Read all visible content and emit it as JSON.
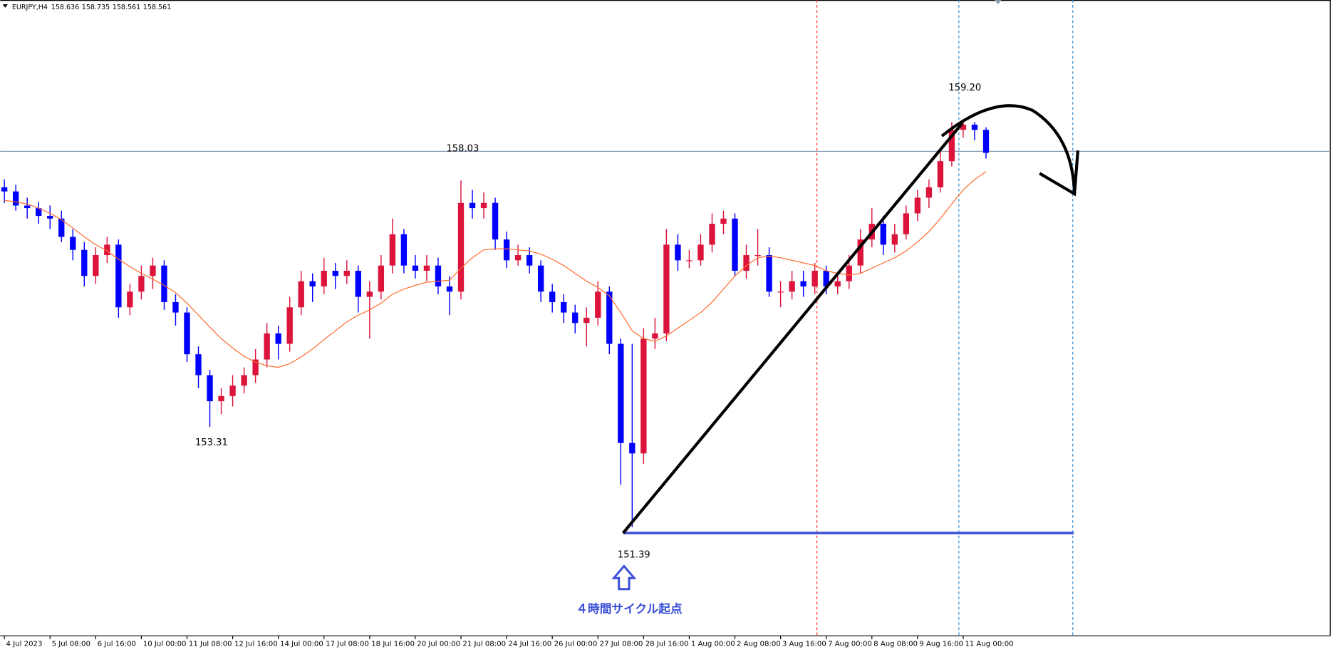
{
  "chart_data": {
    "type": "candlestick",
    "symbol": "EURJPY,H4",
    "info_values": [
      158.636,
      158.735,
      158.561,
      158.561
    ],
    "up_color": "#dc143c",
    "down_color": "#0000ff",
    "ma_color": "#ff6a2a",
    "ylim": [
      149.305,
      161.488
    ],
    "xlim": [
      -0.37,
      116.16
    ],
    "xticks": [
      {
        "value": 0,
        "label": "4 Jul 2023"
      },
      {
        "value": 4,
        "label": "5 Jul 08:00"
      },
      {
        "value": 8,
        "label": "6 Jul 16:00"
      },
      {
        "value": 12,
        "label": "10 Jul 00:00"
      },
      {
        "value": 16,
        "label": "11 Jul 08:00"
      },
      {
        "value": 20,
        "label": "12 Jul 16:00"
      },
      {
        "value": 24,
        "label": "14 Jul 00:00"
      },
      {
        "value": 28,
        "label": "17 Jul 08:00"
      },
      {
        "value": 32,
        "label": "18 Jul 16:00"
      },
      {
        "value": 36,
        "label": "20 Jul 00:00"
      },
      {
        "value": 40,
        "label": "21 Jul 08:00"
      },
      {
        "value": 44,
        "label": "24 Jul 16:00"
      },
      {
        "value": 48,
        "label": "26 Jul 00:00"
      },
      {
        "value": 52,
        "label": "27 Jul 08:00"
      },
      {
        "value": 56,
        "label": "28 Jul 16:00"
      },
      {
        "value": 60,
        "label": "1 Aug 00:00"
      },
      {
        "value": 64,
        "label": "2 Aug 08:00"
      },
      {
        "value": 68,
        "label": "3 Aug 16:00"
      },
      {
        "value": 72,
        "label": "7 Aug 00:00"
      },
      {
        "value": 76,
        "label": "8 Aug 08:00"
      },
      {
        "value": 80,
        "label": "9 Aug 16:00"
      },
      {
        "value": 84,
        "label": "11 Aug 00:00"
      }
    ],
    "candles": [
      [
        157.9,
        158.05,
        157.6,
        157.82
      ],
      [
        157.82,
        157.95,
        157.45,
        157.55
      ],
      [
        157.55,
        157.7,
        157.3,
        157.5
      ],
      [
        157.5,
        157.62,
        157.2,
        157.35
      ],
      [
        157.35,
        157.55,
        157.1,
        157.3
      ],
      [
        157.3,
        157.45,
        156.85,
        156.95
      ],
      [
        156.95,
        157.1,
        156.5,
        156.7
      ],
      [
        156.7,
        156.85,
        156.0,
        156.2
      ],
      [
        156.2,
        156.75,
        156.05,
        156.6
      ],
      [
        156.6,
        156.95,
        156.45,
        156.8
      ],
      [
        156.8,
        156.9,
        155.4,
        155.6
      ],
      [
        155.6,
        156.05,
        155.45,
        155.9
      ],
      [
        155.9,
        156.4,
        155.75,
        156.2
      ],
      [
        156.2,
        156.55,
        155.95,
        156.4
      ],
      [
        156.4,
        156.5,
        155.55,
        155.7
      ],
      [
        155.7,
        155.85,
        155.25,
        155.5
      ],
      [
        155.5,
        155.6,
        154.55,
        154.7
      ],
      [
        154.7,
        154.85,
        154.05,
        154.3
      ],
      [
        154.3,
        154.4,
        153.31,
        153.8
      ],
      [
        153.8,
        154.05,
        153.55,
        153.9
      ],
      [
        153.9,
        154.3,
        153.7,
        154.1
      ],
      [
        154.1,
        154.45,
        153.95,
        154.3
      ],
      [
        154.3,
        154.8,
        154.15,
        154.6
      ],
      [
        154.6,
        155.3,
        154.45,
        155.1
      ],
      [
        155.1,
        155.25,
        154.6,
        154.9
      ],
      [
        154.9,
        155.8,
        154.75,
        155.6
      ],
      [
        155.6,
        156.3,
        155.45,
        156.1
      ],
      [
        156.1,
        156.25,
        155.7,
        156.0
      ],
      [
        156.0,
        156.55,
        155.85,
        156.3
      ],
      [
        156.3,
        156.45,
        155.95,
        156.2
      ],
      [
        156.2,
        156.5,
        156.05,
        156.3
      ],
      [
        156.3,
        156.4,
        155.5,
        155.8
      ],
      [
        155.8,
        156.1,
        155.0,
        155.9
      ],
      [
        155.9,
        156.6,
        155.75,
        156.4
      ],
      [
        156.4,
        157.3,
        156.25,
        157.0
      ],
      [
        157.0,
        157.1,
        156.25,
        156.4
      ],
      [
        156.4,
        156.6,
        156.15,
        156.3
      ],
      [
        156.3,
        156.6,
        156.1,
        156.4
      ],
      [
        156.4,
        156.55,
        155.85,
        156.0
      ],
      [
        156.0,
        156.2,
        155.45,
        155.9
      ],
      [
        155.9,
        158.03,
        155.75,
        157.6
      ],
      [
        157.6,
        157.85,
        157.3,
        157.5
      ],
      [
        157.5,
        157.8,
        157.3,
        157.6
      ],
      [
        157.6,
        157.7,
        156.7,
        156.9
      ],
      [
        156.9,
        157.05,
        156.35,
        156.5
      ],
      [
        156.5,
        156.8,
        156.4,
        156.6
      ],
      [
        156.6,
        156.75,
        156.25,
        156.4
      ],
      [
        156.4,
        156.5,
        155.7,
        155.9
      ],
      [
        155.9,
        156.05,
        155.5,
        155.7
      ],
      [
        155.7,
        155.85,
        155.3,
        155.5
      ],
      [
        155.5,
        155.65,
        155.1,
        155.3
      ],
      [
        155.3,
        155.6,
        154.85,
        155.4
      ],
      [
        155.4,
        156.1,
        155.25,
        155.9
      ],
      [
        155.9,
        156.0,
        154.7,
        154.9
      ],
      [
        154.9,
        155.0,
        152.2,
        153.0
      ],
      [
        153.0,
        154.9,
        151.39,
        152.8
      ],
      [
        152.8,
        155.2,
        152.6,
        155.0
      ],
      [
        155.0,
        155.4,
        154.8,
        155.1
      ],
      [
        155.1,
        157.1,
        154.95,
        156.8
      ],
      [
        156.8,
        157.0,
        156.3,
        156.5
      ],
      [
        156.5,
        156.7,
        156.35,
        156.5
      ],
      [
        156.5,
        157.0,
        156.4,
        156.8
      ],
      [
        156.8,
        157.4,
        156.65,
        157.2
      ],
      [
        157.2,
        157.45,
        157.0,
        157.3
      ],
      [
        157.3,
        157.4,
        156.2,
        156.3
      ],
      [
        156.3,
        156.8,
        156.15,
        156.6
      ],
      [
        156.6,
        157.1,
        156.4,
        156.6
      ],
      [
        156.6,
        156.75,
        155.8,
        155.9
      ],
      [
        155.9,
        156.1,
        155.6,
        155.9
      ],
      [
        155.9,
        156.3,
        155.75,
        156.1
      ],
      [
        156.1,
        156.3,
        155.8,
        156.0
      ],
      [
        156.0,
        156.45,
        155.85,
        156.3
      ],
      [
        156.3,
        156.4,
        155.85,
        156.0
      ],
      [
        156.0,
        156.25,
        155.85,
        156.1
      ],
      [
        156.1,
        156.6,
        155.95,
        156.4
      ],
      [
        156.4,
        157.1,
        156.25,
        156.9
      ],
      [
        156.9,
        157.5,
        156.75,
        157.2
      ],
      [
        157.2,
        157.35,
        156.6,
        156.8
      ],
      [
        156.8,
        157.2,
        156.65,
        157.0
      ],
      [
        157.0,
        157.55,
        156.9,
        157.4
      ],
      [
        157.4,
        157.85,
        157.25,
        157.7
      ],
      [
        157.7,
        158.05,
        157.5,
        157.9
      ],
      [
        157.9,
        158.6,
        157.8,
        158.4
      ],
      [
        158.4,
        159.15,
        158.3,
        159.0
      ],
      [
        159.0,
        159.2,
        158.85,
        159.1
      ],
      [
        159.1,
        159.15,
        158.8,
        159.0
      ],
      [
        159.0,
        159.05,
        158.45,
        158.56
      ]
    ],
    "ma": [
      157.65,
      157.62,
      157.58,
      157.5,
      157.4,
      157.28,
      157.12,
      156.95,
      156.8,
      156.68,
      156.52,
      156.38,
      156.25,
      156.14,
      156.02,
      155.88,
      155.68,
      155.45,
      155.22,
      155.0,
      154.82,
      154.66,
      154.55,
      154.48,
      154.45,
      154.52,
      154.65,
      154.8,
      154.98,
      155.15,
      155.32,
      155.45,
      155.55,
      155.68,
      155.85,
      155.95,
      156.02,
      156.08,
      156.1,
      156.12,
      156.35,
      156.55,
      156.7,
      156.72,
      156.72,
      156.7,
      156.68,
      156.62,
      156.52,
      156.4,
      156.25,
      156.1,
      155.98,
      155.82,
      155.5,
      155.15,
      155.0,
      154.95,
      155.05,
      155.2,
      155.35,
      155.5,
      155.7,
      155.95,
      156.2,
      156.4,
      156.55,
      156.58,
      156.55,
      156.5,
      156.45,
      156.4,
      156.3,
      156.25,
      156.22,
      156.25,
      156.35,
      156.45,
      156.55,
      156.68,
      156.85,
      157.05,
      157.3,
      157.58,
      157.85,
      158.05,
      158.2
    ],
    "price_labels": [
      {
        "value": 153.31,
        "label": "153.31"
      },
      {
        "value": 158.03,
        "label": "158.03"
      },
      {
        "value": 159.2,
        "label": "159.20"
      },
      {
        "value": 151.39,
        "label": "151.39"
      }
    ],
    "annotation": "４時間サイクル起点"
  }
}
